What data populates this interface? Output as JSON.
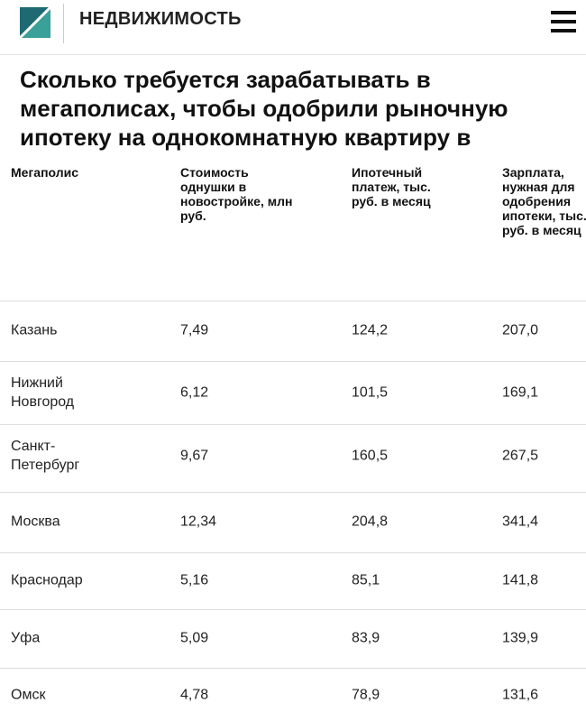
{
  "header": {
    "title": "НЕДВИЖИМОСТЬ"
  },
  "article": {
    "title": "Сколько требуется зарабатывать в мегаполисах, чтобы одобрили рыночную ипотеку на однокомнатную квартиру в"
  },
  "table": {
    "columns": [
      "Мегаполис",
      "Стоимость однушки в новостройке, млн руб.",
      "Ипотечный платеж, тыс. руб. в месяц",
      "Зарплата, нужная для одобрения ипотеки, тыс. руб. в месяц"
    ],
    "rows": [
      [
        "Казань",
        "7,49",
        "124,2",
        "207,0"
      ],
      [
        "Нижний Новгород",
        "6,12",
        "101,5",
        "169,1"
      ],
      [
        "Санкт-Петербург",
        "9,67",
        "160,5",
        "267,5"
      ],
      [
        "Москва",
        "12,34",
        "204,8",
        "341,4"
      ],
      [
        "Краснодар",
        "5,16",
        "85,1",
        "141,8"
      ],
      [
        "Уфа",
        "5,09",
        "83,9",
        "139,9"
      ],
      [
        "Омск",
        "4,78",
        "78,9",
        "131,6"
      ]
    ]
  }
}
